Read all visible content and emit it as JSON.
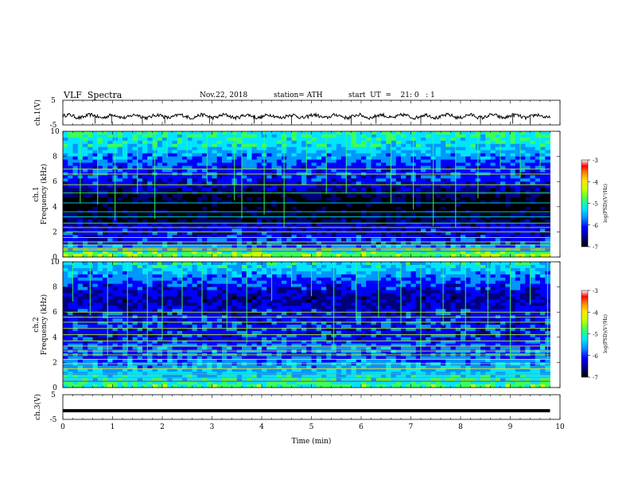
{
  "header": {
    "title": "VLF  Spectra",
    "date": "Nov.22, 2018",
    "station": "station= ATH",
    "start": "start  UT  =    21: 0   : 1"
  },
  "colors": {
    "background": "#ffffff",
    "axis": "#000000",
    "colormap": [
      "#000000",
      "#00007a",
      "#0000ff",
      "#0096ff",
      "#00e5ff",
      "#3cff5a",
      "#c8ff00",
      "#ffe600",
      "#ff7a00",
      "#ff0000",
      "#ffffff"
    ]
  },
  "chart_data": [
    {
      "type": "line",
      "name": "ch1-waveform",
      "ylabel": "ch.1(V)",
      "yticks": [
        "5",
        "-5"
      ],
      "ylim": [
        -5,
        5
      ],
      "xlim": [
        0,
        10
      ],
      "x_extent": [
        0,
        9.8
      ],
      "baseline": -1.5,
      "spike_times": [
        0.65,
        0.98,
        1.6,
        2.05,
        2.95,
        3.85,
        4.6,
        5.8,
        6.3,
        7.2,
        8.4,
        9.05,
        9.4
      ],
      "color": "#000000"
    },
    {
      "type": "heatmap",
      "name": "ch1-spectrogram",
      "ylabel": "ch.1\nFrequency  (kHz)",
      "yticks": [
        "0",
        "2",
        "4",
        "6",
        "8",
        "10"
      ],
      "ylim": [
        0,
        10
      ],
      "xlim": [
        0,
        10
      ],
      "x_extent": [
        0,
        9.8
      ],
      "zlim": [
        -7,
        -3
      ],
      "colorbar_label": "log(PSD)(V²/Hz)",
      "colorbar_ticks": [
        "-3",
        "-4",
        "-5",
        "-6",
        "-7"
      ],
      "profile_khz": [
        0,
        0.5,
        1.0,
        1.5,
        2.0,
        2.5,
        3.0,
        3.5,
        4.0,
        4.5,
        5.0,
        5.5,
        6.0,
        6.5,
        7.0,
        7.5,
        8.0,
        8.5,
        9.0,
        9.5,
        10.0
      ],
      "profile_logpsd": [
        -4.6,
        -4.9,
        -5.9,
        -6.0,
        -6.1,
        -6.2,
        -6.6,
        -6.8,
        -6.9,
        -6.8,
        -6.5,
        -6.3,
        -6.0,
        -5.9,
        -6.0,
        -5.8,
        -5.6,
        -5.4,
        -5.2,
        -5.1,
        -5.0
      ],
      "lines_khz": [
        0.45,
        0.7,
        0.95,
        1.2,
        1.55,
        2.0,
        2.35,
        2.7,
        3.2,
        3.6,
        4.3,
        5.1,
        5.75,
        6.6,
        7.0
      ],
      "burst_times": [
        0.35,
        0.7,
        1.05,
        1.5,
        1.85,
        2.1,
        2.5,
        2.9,
        3.45,
        3.6,
        4.05,
        4.45,
        4.9,
        5.3,
        5.7,
        6.2,
        6.6,
        7.05,
        7.45,
        7.9,
        8.35,
        8.8,
        9.2,
        9.6
      ]
    },
    {
      "type": "heatmap",
      "name": "ch2-spectrogram",
      "ylabel": "ch.2\nFrequency  (kHz)",
      "yticks": [
        "0",
        "2",
        "4",
        "6",
        "8",
        "10"
      ],
      "ylim": [
        0,
        10
      ],
      "xlim": [
        0,
        10
      ],
      "x_extent": [
        0,
        9.8
      ],
      "zlim": [
        -7,
        -3
      ],
      "colorbar_label": "log(PSD)(V²/Hz)",
      "colorbar_ticks": [
        "-3",
        "-4",
        "-5",
        "-6",
        "-7"
      ],
      "profile_khz": [
        0,
        0.5,
        1.0,
        1.5,
        2.0,
        2.5,
        3.0,
        3.5,
        4.0,
        4.5,
        5.0,
        5.5,
        6.0,
        6.5,
        7.0,
        7.5,
        8.0,
        8.5,
        9.0,
        9.5,
        10.0
      ],
      "profile_logpsd": [
        -4.8,
        -5.0,
        -5.3,
        -5.5,
        -5.6,
        -5.9,
        -5.6,
        -5.9,
        -6.0,
        -6.0,
        -5.9,
        -6.1,
        -6.0,
        -6.2,
        -6.3,
        -6.2,
        -6.0,
        -5.8,
        -5.6,
        -5.3,
        -5.2
      ],
      "lines_khz": [
        0.5,
        0.8,
        1.1,
        1.5,
        1.9,
        2.25,
        2.6,
        2.9,
        3.3,
        3.7,
        4.2,
        4.7,
        5.2,
        5.6,
        6.0
      ],
      "burst_times": [
        0.2,
        0.55,
        0.9,
        1.3,
        1.7,
        2.0,
        2.4,
        2.8,
        3.3,
        3.7,
        4.2,
        4.6,
        5.0,
        5.45,
        5.9,
        6.35,
        6.8,
        7.2,
        7.65,
        8.1,
        8.55,
        9.0,
        9.4,
        9.75
      ]
    },
    {
      "type": "line",
      "name": "ch3-waveform",
      "ylabel": "ch.3(V)",
      "yticks": [
        "5",
        "-5"
      ],
      "ylim": [
        -5,
        5
      ],
      "xlim": [
        0,
        10
      ],
      "x_extent": [
        0,
        9.8
      ],
      "baseline": -1.5,
      "xlabel": "Time  (min)",
      "xticks": [
        "0",
        "1",
        "2",
        "3",
        "4",
        "5",
        "6",
        "7",
        "8",
        "9",
        "10"
      ],
      "color": "#000000"
    }
  ]
}
